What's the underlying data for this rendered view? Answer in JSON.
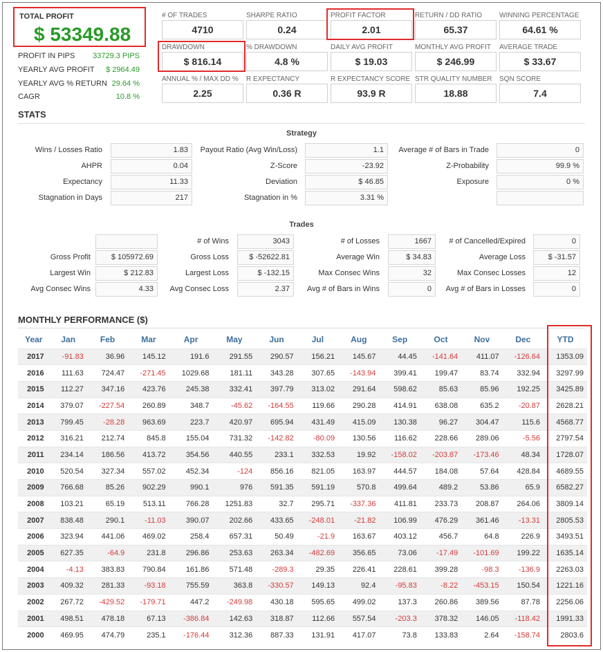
{
  "summary": {
    "total_profit_label": "TOTAL PROFIT",
    "total_profit_value": "$ 53349.88",
    "left_stats": [
      {
        "label": "PROFIT IN PIPS",
        "value": "33729.3 PIPS"
      },
      {
        "label": "YEARLY AVG PROFIT",
        "value": "$ 2964.49"
      },
      {
        "label": "YEARLY AVG % RETURN",
        "value": "29.64 %"
      },
      {
        "label": "CAGR",
        "value": "10.8 %"
      }
    ]
  },
  "metrics": [
    {
      "label": "# OF TRADES",
      "value": "4710"
    },
    {
      "label": "SHARPE RATIO",
      "value": "0.24"
    },
    {
      "label": "PROFIT FACTOR",
      "value": "2.01"
    },
    {
      "label": "RETURN / DD RATIO",
      "value": "65.37"
    },
    {
      "label": "WINNING PERCENTAGE",
      "value": "64.61 %"
    },
    {
      "label": "DRAWDOWN",
      "value": "$ 816.14"
    },
    {
      "label": "% DRAWDOWN",
      "value": "4.8 %"
    },
    {
      "label": "DAILY AVG PROFIT",
      "value": "$ 19.03"
    },
    {
      "label": "MONTHLY AVG PROFIT",
      "value": "$ 246.99"
    },
    {
      "label": "AVERAGE TRADE",
      "value": "$ 33.67"
    },
    {
      "label": "ANNUAL % / MAX DD %",
      "value": "2.25"
    },
    {
      "label": "R EXPECTANCY",
      "value": "0.36 R"
    },
    {
      "label": "R EXPECTANCY SCORE",
      "value": "93.9 R"
    },
    {
      "label": "STR QUALITY NUMBER",
      "value": "18.88"
    },
    {
      "label": "SQN SCORE",
      "value": "7.4"
    }
  ],
  "stats": {
    "title": "STATS",
    "strategy_title": "Strategy",
    "strategy": [
      [
        {
          "label": "Wins / Losses Ratio",
          "value": "1.83"
        },
        {
          "label": "Payout Ratio (Avg Win/Loss)",
          "value": "1.1"
        },
        {
          "label": "Average # of Bars in Trade",
          "value": "0"
        }
      ],
      [
        {
          "label": "AHPR",
          "value": "0.04"
        },
        {
          "label": "Z-Score",
          "value": "-23.92"
        },
        {
          "label": "Z-Probability",
          "value": "99.9 %"
        }
      ],
      [
        {
          "label": "Expectancy",
          "value": "11.33"
        },
        {
          "label": "Deviation",
          "value": "$ 46.85"
        },
        {
          "label": "Exposure",
          "value": "0 %"
        }
      ],
      [
        {
          "label": "Stagnation in Days",
          "value": "217"
        },
        {
          "label": "Stagnation in %",
          "value": "3.31 %"
        },
        {
          "label": "",
          "value": ""
        }
      ]
    ],
    "trades_title": "Trades",
    "trades": [
      [
        {
          "label": "",
          "value": ""
        },
        {
          "label": "# of Wins",
          "value": "3043"
        },
        {
          "label": "# of Losses",
          "value": "1667"
        },
        {
          "label": "# of Cancelled/Expired",
          "value": "0"
        }
      ],
      [
        {
          "label": "Gross Profit",
          "value": "$ 105972.69"
        },
        {
          "label": "Gross Loss",
          "value": "$ -52622.81"
        },
        {
          "label": "Average Win",
          "value": "$ 34.83"
        },
        {
          "label": "Average Loss",
          "value": "$ -31.57"
        }
      ],
      [
        {
          "label": "Largest Win",
          "value": "$ 212.83"
        },
        {
          "label": "Largest Loss",
          "value": "$ -132.15"
        },
        {
          "label": "Max Consec Wins",
          "value": "32"
        },
        {
          "label": "Max Consec Losses",
          "value": "12"
        }
      ],
      [
        {
          "label": "Avg Consec Wins",
          "value": "4.33"
        },
        {
          "label": "Avg Consec Loss",
          "value": "2.37"
        },
        {
          "label": "Avg # of Bars in Wins",
          "value": "0"
        },
        {
          "label": "Avg # of Bars in Losses",
          "value": "0"
        }
      ]
    ]
  },
  "monthly": {
    "title": "MONTHLY PERFORMANCE ($)",
    "headers": [
      "Year",
      "Jan",
      "Feb",
      "Mar",
      "Apr",
      "May",
      "Jun",
      "Jul",
      "Aug",
      "Sep",
      "Oct",
      "Nov",
      "Dec",
      "YTD"
    ],
    "rows": [
      [
        "2017",
        "-91.83",
        "36.96",
        "145.12",
        "191.6",
        "291.55",
        "290.57",
        "156.21",
        "145.67",
        "44.45",
        "-141.64",
        "411.07",
        "-126.64",
        "1353.09"
      ],
      [
        "2016",
        "111.63",
        "724.47",
        "-271.45",
        "1029.68",
        "181.11",
        "343.28",
        "307.65",
        "-143.94",
        "399.41",
        "199.47",
        "83.74",
        "332.94",
        "3297.99"
      ],
      [
        "2015",
        "112.27",
        "347.16",
        "423.76",
        "245.38",
        "332.41",
        "397.79",
        "313.02",
        "291.64",
        "598.62",
        "85.63",
        "85.96",
        "192.25",
        "3425.89"
      ],
      [
        "2014",
        "379.07",
        "-227.54",
        "260.89",
        "348.7",
        "-45.62",
        "-164.55",
        "119.66",
        "290.28",
        "414.91",
        "638.08",
        "635.2",
        "-20.87",
        "2628.21"
      ],
      [
        "2013",
        "799.45",
        "-28.28",
        "963.69",
        "223.7",
        "420.97",
        "695.94",
        "431.49",
        "415.09",
        "130.38",
        "96.27",
        "304.47",
        "115.6",
        "4568.77"
      ],
      [
        "2012",
        "316.21",
        "212.74",
        "845.8",
        "155.04",
        "731.32",
        "-142.82",
        "-80.09",
        "130.56",
        "116.62",
        "228.66",
        "289.06",
        "-5.56",
        "2797.54"
      ],
      [
        "2011",
        "234.14",
        "186.56",
        "413.72",
        "354.56",
        "440.55",
        "233.1",
        "332.53",
        "19.92",
        "-158.02",
        "-203.87",
        "-173.46",
        "48.34",
        "1728.07"
      ],
      [
        "2010",
        "520.54",
        "327.34",
        "557.02",
        "452.34",
        "-124",
        "856.16",
        "821.05",
        "163.97",
        "444.57",
        "184.08",
        "57.64",
        "428.84",
        "4689.55"
      ],
      [
        "2009",
        "766.68",
        "85.26",
        "902.29",
        "990.1",
        "976",
        "591.35",
        "591.19",
        "570.8",
        "499.64",
        "489.2",
        "53.86",
        "65.9",
        "6582.27"
      ],
      [
        "2008",
        "103.21",
        "65.19",
        "513.11",
        "766.28",
        "1251.83",
        "32.7",
        "295.71",
        "-337.36",
        "411.81",
        "233.73",
        "208.87",
        "264.06",
        "3809.14"
      ],
      [
        "2007",
        "838.48",
        "290.1",
        "-11.03",
        "390.07",
        "202.66",
        "433.65",
        "-248.01",
        "-21.82",
        "106.99",
        "476.29",
        "361.46",
        "-13.31",
        "2805.53"
      ],
      [
        "2006",
        "323.94",
        "441.06",
        "469.02",
        "258.4",
        "657.31",
        "50.49",
        "-21.9",
        "163.67",
        "403.12",
        "456.7",
        "64.8",
        "226.9",
        "3493.51"
      ],
      [
        "2005",
        "627.35",
        "-64.9",
        "231.8",
        "296.86",
        "253.63",
        "263.34",
        "-482.69",
        "356.65",
        "73.06",
        "-17.49",
        "-101.69",
        "199.22",
        "1635.14"
      ],
      [
        "2004",
        "-4.13",
        "383.83",
        "790.84",
        "161.86",
        "571.48",
        "-289.3",
        "29.35",
        "226.41",
        "228.61",
        "399.28",
        "-98.3",
        "-136.9",
        "2263.03"
      ],
      [
        "2003",
        "409.32",
        "281.33",
        "-93.18",
        "755.59",
        "363.8",
        "-330.57",
        "149.13",
        "92.4",
        "-95.83",
        "-8.22",
        "-453.15",
        "150.54",
        "1221.16"
      ],
      [
        "2002",
        "267.72",
        "-429.52",
        "-179.71",
        "447.2",
        "-249.98",
        "430.18",
        "595.65",
        "499.02",
        "137.3",
        "260.86",
        "389.56",
        "87.78",
        "2256.06"
      ],
      [
        "2001",
        "498.51",
        "478.18",
        "67.13",
        "-386.84",
        "142.63",
        "318.87",
        "112.66",
        "557.54",
        "-203.3",
        "378.32",
        "146.05",
        "-118.42",
        "1991.33"
      ],
      [
        "2000",
        "469.95",
        "474.79",
        "235.1",
        "-176.44",
        "312.36",
        "887.33",
        "131.91",
        "417.07",
        "73.8",
        "133.83",
        "2.64",
        "-158.74",
        "2803.6"
      ]
    ]
  },
  "colors": {
    "positive": "#2a9a2a",
    "negative": "#d23b3b",
    "highlight": "#e02a2a",
    "header": "#3c6e9c"
  }
}
